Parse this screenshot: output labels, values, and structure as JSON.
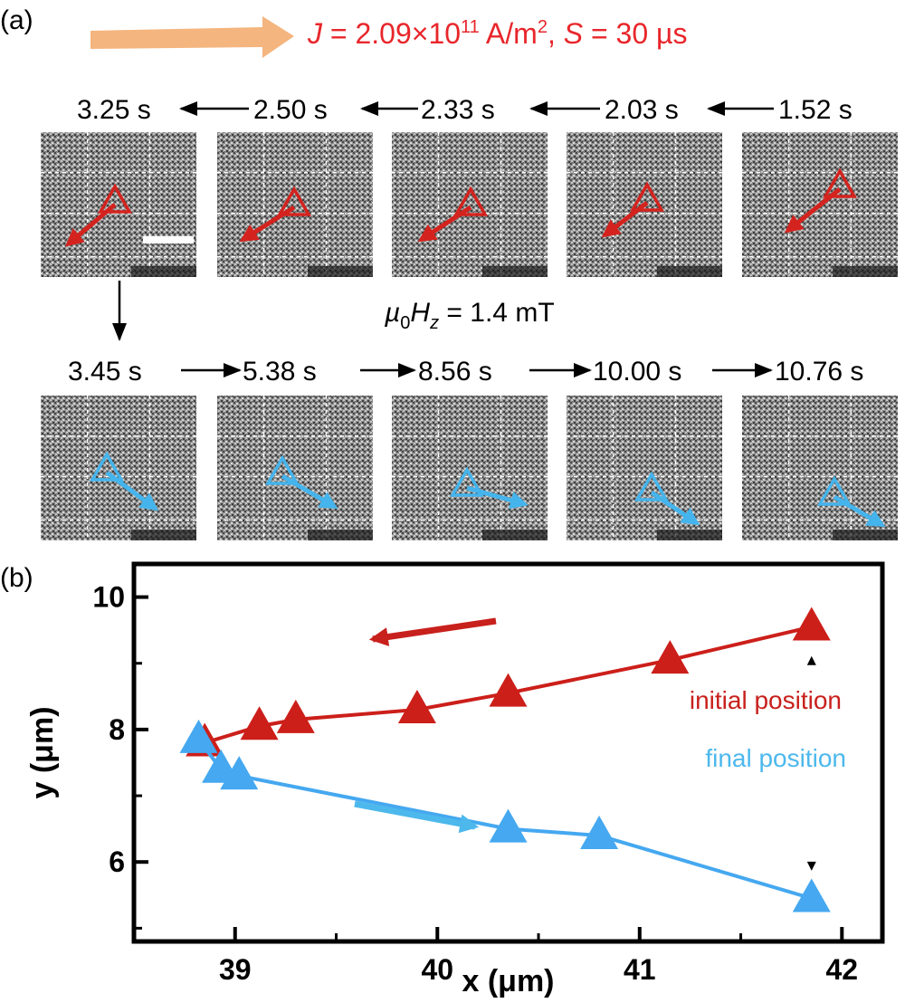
{
  "panel_a": {
    "label": "(a)",
    "header": {
      "J_symbol": "J",
      "J_eq": " = 2.09×10",
      "J_exp": "11",
      "J_unit": " A/m",
      "J_unit_exp": "2",
      "sep": ", ",
      "S_symbol": "S",
      "S_eq": " = 30 µs"
    },
    "field": {
      "mu": "µ",
      "mu_sub": "0",
      "H": "H",
      "H_sub": "z",
      "rest": " = 1.4 mT"
    },
    "row1_times": [
      "3.25 s",
      "2.50 s",
      "2.33 s",
      "2.03 s",
      "1.52 s"
    ],
    "row2_times": [
      "3.45 s",
      "5.38 s",
      "8.56 s",
      "10.00 s",
      "10.76 s"
    ],
    "colors": {
      "red": "#e8262b",
      "dark_red": "#c8201c",
      "cyan": "#4db8ec",
      "orange_arrow": "#f4b57e"
    }
  },
  "panel_b": {
    "label": "(b)"
  },
  "chart_data": {
    "type": "scatter",
    "title": "",
    "xlabel": "x (μm)",
    "ylabel": "y (μm)",
    "xlim": [
      38.5,
      42.2
    ],
    "ylim": [
      4.8,
      10.5
    ],
    "xticks": [
      39,
      40,
      41,
      42
    ],
    "yticks": [
      6,
      8,
      10
    ],
    "series": [
      {
        "name": "initial position",
        "color": "#cc1f1a",
        "marker": "triangle",
        "x": [
          38.85,
          39.12,
          39.3,
          39.9,
          40.35,
          41.15,
          41.85
        ],
        "y": [
          7.8,
          8.05,
          8.15,
          8.3,
          8.55,
          9.05,
          9.55
        ]
      },
      {
        "name": "final position",
        "color": "#45a8f0",
        "marker": "triangle",
        "x": [
          38.82,
          38.93,
          39.02,
          40.35,
          40.8,
          41.85
        ],
        "y": [
          7.85,
          7.4,
          7.3,
          6.5,
          6.4,
          5.45
        ]
      }
    ],
    "annotations": [
      "initial position",
      "final position"
    ]
  }
}
